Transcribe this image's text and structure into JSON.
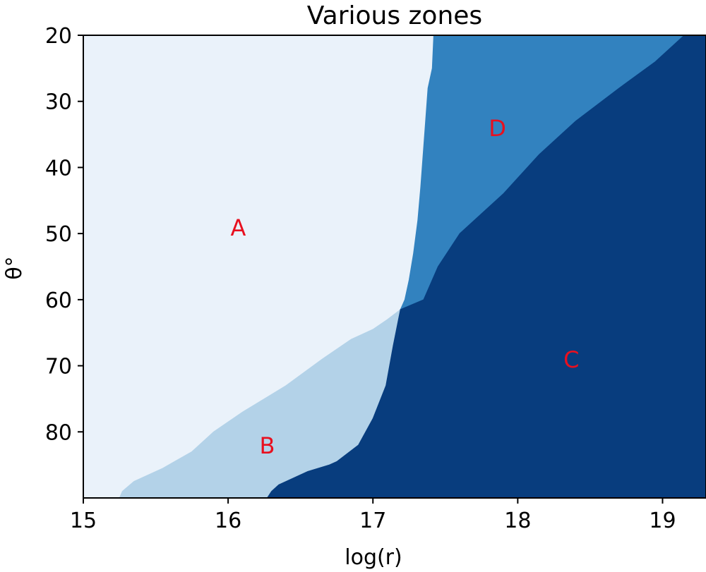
{
  "chart_data": {
    "type": "heatmap",
    "title": "Various zones",
    "xlabel": "log(r)",
    "ylabel": "θ°",
    "xlim": [
      15,
      19.3
    ],
    "ylim": [
      20,
      90
    ],
    "y_inverted": true,
    "grid": false,
    "x_ticks": [
      15,
      16,
      17,
      18,
      19
    ],
    "x_tick_labels": [
      "15",
      "16",
      "17",
      "18",
      "19"
    ],
    "y_ticks": [
      20,
      30,
      40,
      50,
      60,
      70,
      80
    ],
    "y_tick_labels": [
      "20",
      "30",
      "40",
      "50",
      "60",
      "70",
      "80"
    ],
    "zones": [
      {
        "name": "A",
        "color": "#eaf2fa",
        "label_at": [
          16.07,
          49
        ],
        "polygon": [
          [
            15,
            20
          ],
          [
            17.42,
            20
          ],
          [
            17.41,
            25
          ],
          [
            17.38,
            28
          ],
          [
            17.36,
            34
          ],
          [
            17.33,
            43
          ],
          [
            17.31,
            48
          ],
          [
            17.28,
            53
          ],
          [
            17.25,
            57
          ],
          [
            17.22,
            60
          ],
          [
            17.19,
            61.5
          ],
          [
            17.1,
            63
          ],
          [
            17.0,
            64.5
          ],
          [
            16.85,
            66
          ],
          [
            16.65,
            69
          ],
          [
            16.4,
            73
          ],
          [
            16.1,
            77
          ],
          [
            15.9,
            80
          ],
          [
            15.75,
            83
          ],
          [
            15.55,
            85.5
          ],
          [
            15.45,
            86.5
          ],
          [
            15.35,
            87.5
          ],
          [
            15.27,
            89
          ],
          [
            15.25,
            90
          ],
          [
            15,
            90
          ]
        ]
      },
      {
        "name": "B",
        "color": "#b3d2e8",
        "label_at": [
          16.27,
          82
        ],
        "polygon": [
          [
            17.19,
            61.5
          ],
          [
            17.14,
            67
          ],
          [
            17.09,
            73
          ],
          [
            17.0,
            78
          ],
          [
            16.9,
            82
          ],
          [
            16.75,
            84.5
          ],
          [
            16.7,
            85
          ],
          [
            16.55,
            86
          ],
          [
            16.35,
            88
          ],
          [
            16.3,
            89
          ],
          [
            16.27,
            90
          ],
          [
            15.25,
            90
          ],
          [
            15.27,
            89
          ],
          [
            15.35,
            87.5
          ],
          [
            15.45,
            86.5
          ],
          [
            15.55,
            85.5
          ],
          [
            15.75,
            83
          ],
          [
            15.9,
            80
          ],
          [
            16.1,
            77
          ],
          [
            16.4,
            73
          ],
          [
            16.65,
            69
          ],
          [
            16.85,
            66
          ],
          [
            17.0,
            64.5
          ],
          [
            17.1,
            63
          ]
        ]
      },
      {
        "name": "D",
        "color": "#3282bf",
        "label_at": [
          17.86,
          34
        ],
        "polygon": [
          [
            17.42,
            20
          ],
          [
            19.15,
            20
          ],
          [
            18.95,
            24
          ],
          [
            18.7,
            28
          ],
          [
            18.4,
            33
          ],
          [
            18.15,
            38
          ],
          [
            17.9,
            44
          ],
          [
            17.6,
            50
          ],
          [
            17.45,
            55
          ],
          [
            17.35,
            60
          ],
          [
            17.19,
            61.5
          ],
          [
            17.22,
            60
          ],
          [
            17.25,
            57
          ],
          [
            17.28,
            53
          ],
          [
            17.31,
            48
          ],
          [
            17.33,
            43
          ],
          [
            17.36,
            34
          ],
          [
            17.38,
            28
          ],
          [
            17.41,
            25
          ]
        ]
      },
      {
        "name": "C",
        "color": "#083d7e",
        "label_at": [
          18.37,
          69
        ],
        "polygon": [
          [
            19.15,
            20
          ],
          [
            19.3,
            20
          ],
          [
            19.3,
            90
          ],
          [
            16.27,
            90
          ],
          [
            16.3,
            89
          ],
          [
            16.35,
            88
          ],
          [
            16.55,
            86
          ],
          [
            16.7,
            85
          ],
          [
            16.75,
            84.5
          ],
          [
            16.9,
            82
          ],
          [
            17.0,
            78
          ],
          [
            17.09,
            73
          ],
          [
            17.14,
            67
          ],
          [
            17.19,
            61.5
          ],
          [
            17.35,
            60
          ],
          [
            17.45,
            55
          ],
          [
            17.6,
            50
          ],
          [
            17.9,
            44
          ],
          [
            18.15,
            38
          ],
          [
            18.4,
            33
          ],
          [
            18.7,
            28
          ],
          [
            18.95,
            24
          ]
        ]
      }
    ],
    "annotation_color": "#e8101f"
  }
}
